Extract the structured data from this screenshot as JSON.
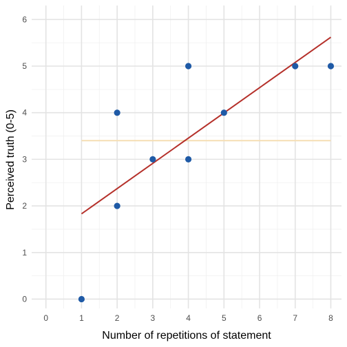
{
  "chart_data": {
    "type": "scatter",
    "title": "",
    "xlabel": "Number of repetitions of statement",
    "ylabel": "Perceived truth (0-5)",
    "xlim": [
      -0.4,
      8.3
    ],
    "ylim": [
      -0.2,
      6.3
    ],
    "x_tick_values": [
      0,
      1,
      2,
      3,
      4,
      5,
      6,
      7,
      8
    ],
    "x_tick_labels": [
      "0",
      "1",
      "2",
      "3",
      "4",
      "5",
      "6",
      "7",
      "8"
    ],
    "y_tick_values": [
      0,
      1,
      2,
      3,
      4,
      5,
      6
    ],
    "y_tick_labels": [
      "0",
      "1",
      "2",
      "3",
      "4",
      "5",
      "6"
    ],
    "grid": true,
    "legend": "none",
    "points": [
      {
        "x": 1,
        "y": 0
      },
      {
        "x": 2,
        "y": 2
      },
      {
        "x": 2,
        "y": 4
      },
      {
        "x": 3,
        "y": 3
      },
      {
        "x": 4,
        "y": 3
      },
      {
        "x": 4,
        "y": 5
      },
      {
        "x": 5,
        "y": 4
      },
      {
        "x": 7,
        "y": 5
      },
      {
        "x": 8,
        "y": 5
      }
    ],
    "regression_line": {
      "x": [
        1,
        8
      ],
      "y": [
        1.83,
        5.62
      ]
    },
    "mean_line": {
      "x": [
        1,
        8
      ],
      "y": [
        3.4,
        3.4
      ]
    },
    "colors": {
      "points": "#1f5aa6",
      "regression_line": "#b5302a",
      "mean_line": "#f5deb3",
      "grid_major": "#e3e3e3",
      "grid_minor": "#f0f0f0"
    }
  }
}
